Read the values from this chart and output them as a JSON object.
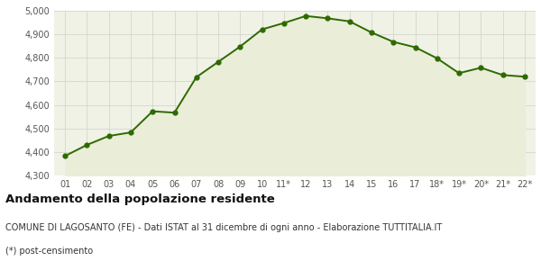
{
  "x_labels": [
    "01",
    "02",
    "03",
    "04",
    "05",
    "06",
    "07",
    "08",
    "09",
    "10",
    "11*",
    "12",
    "13",
    "14",
    "15",
    "16",
    "17",
    "18*",
    "19*",
    "20*",
    "21*",
    "22*"
  ],
  "y_values": [
    4383,
    4430,
    4468,
    4483,
    4573,
    4567,
    4718,
    4783,
    4848,
    4921,
    4948,
    4978,
    4968,
    4955,
    4908,
    4868,
    4845,
    4798,
    4735,
    4758,
    4727,
    4720
  ],
  "line_color": "#2d6a00",
  "fill_color": "#eaedd8",
  "marker_color": "#2d6a00",
  "background_color": "#f0f2e6",
  "grid_color": "#d0d0c8",
  "ylim": [
    4300,
    5000
  ],
  "yticks": [
    4300,
    4400,
    4500,
    4600,
    4700,
    4800,
    4900,
    5000
  ],
  "ytick_labels": [
    "4,300",
    "4,400",
    "4,500",
    "4,600",
    "4,700",
    "4,800",
    "4,900",
    "5,000"
  ],
  "title": "Andamento della popolazione residente",
  "subtitle": "COMUNE DI LAGOSANTO (FE) - Dati ISTAT al 31 dicembre di ogni anno - Elaborazione TUTTITALIA.IT",
  "footnote": "(*) post-censimento",
  "title_fontsize": 9.5,
  "subtitle_fontsize": 7,
  "footnote_fontsize": 7,
  "tick_fontsize": 7
}
